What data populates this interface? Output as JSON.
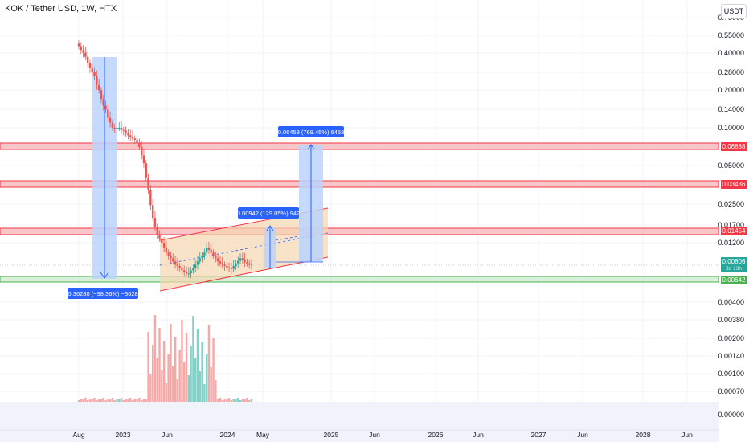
{
  "header": {
    "title": "KOK / Tether USD, 1W, HTX",
    "currency_button": "USDT"
  },
  "price_axis": {
    "ticks": [
      "0.75000",
      "0.55000",
      "0.40000",
      "0.28000",
      "0.20000",
      "0.14000",
      "0.10000",
      "0.05000",
      "0.02500",
      "0.01700",
      "0.01200",
      "0.00400",
      "0.00380",
      "0.00200",
      "0.00140",
      "0.00100",
      "0.00070",
      "0.00000"
    ],
    "badges": [
      {
        "label": "0.06888",
        "color": "#f23645"
      },
      {
        "label": "0.03436",
        "color": "#f23645"
      },
      {
        "label": "0.01454",
        "color": "#f23645"
      },
      {
        "label": "0.00806",
        "color": "#26a69a",
        "sub": "3d 13h"
      },
      {
        "label": "0.00642",
        "color": "#4caf50"
      }
    ]
  },
  "time_axis": {
    "labels": [
      "Aug",
      "2023",
      "Jun",
      "2024",
      "May",
      "2025",
      "Jun",
      "2026",
      "Jun",
      "2027",
      "Jun",
      "2028",
      "Jun"
    ]
  },
  "measurements": [
    {
      "label": "−0.36280 (−98.36%) −36280",
      "color": "#2962ff"
    },
    {
      "label": "0.00942 (129.05%) 942",
      "color": "#2962ff"
    },
    {
      "label": "0.06458 (768.45%) 6458",
      "color": "#2962ff"
    }
  ],
  "chart_data": {
    "type": "candlestick",
    "title": "KOK / Tether USD, 1W, HTX",
    "xlabel": "",
    "ylabel": "",
    "y_scale": "log",
    "x_ticks": [
      "Aug",
      "2023",
      "Jun",
      "2024",
      "May",
      "2025",
      "Jun",
      "2026",
      "Jun",
      "2027",
      "Jun",
      "2028",
      "Jun"
    ],
    "y_ticks": [
      "0.75000",
      "0.55000",
      "0.40000",
      "0.28000",
      "0.20000",
      "0.14000",
      "0.10000",
      "0.05000",
      "0.02500",
      "0.01700",
      "0.01200"
    ],
    "horizontal_levels": [
      0.06888,
      0.03436,
      0.01454,
      0.00642
    ],
    "last_price": 0.00806,
    "close_approx": [
      0.45,
      0.42,
      0.4,
      0.37,
      0.33,
      0.3,
      0.28,
      0.26,
      0.22,
      0.2,
      0.17,
      0.15,
      0.14,
      0.12,
      0.11,
      0.1,
      0.098,
      0.1,
      0.1,
      0.096,
      0.095,
      0.09,
      0.087,
      0.085,
      0.082,
      0.08,
      0.075,
      0.07,
      0.06,
      0.052,
      0.04,
      0.032,
      0.024,
      0.019,
      0.016,
      0.014,
      0.013,
      0.012,
      0.011,
      0.01,
      0.0095,
      0.009,
      0.0085,
      0.008,
      0.0078,
      0.0075,
      0.0072,
      0.007,
      0.0068,
      0.0068,
      0.0072,
      0.0075,
      0.008,
      0.0085,
      0.009,
      0.0095,
      0.01,
      0.011,
      0.0105,
      0.01,
      0.0095,
      0.009,
      0.0085,
      0.0082,
      0.008,
      0.0078,
      0.0076,
      0.0075,
      0.0074,
      0.0078,
      0.0082,
      0.0086,
      0.009,
      0.0088,
      0.0084,
      0.0082,
      0.008,
      0.0081
    ]
  }
}
